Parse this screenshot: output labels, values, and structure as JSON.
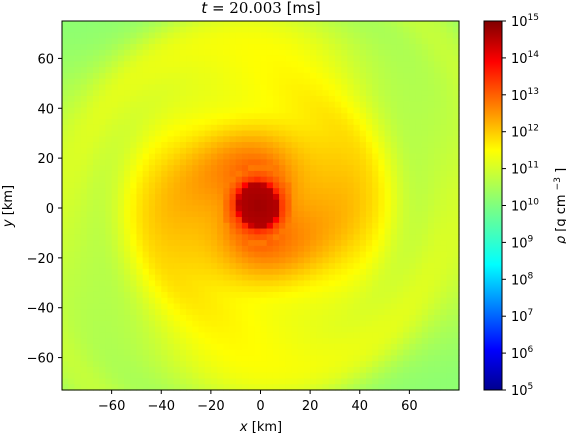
{
  "chart_data": {
    "type": "heatmap",
    "title": {
      "var": "t",
      "eq": "= ",
      "value": "20.003",
      "unit": "[ms]"
    },
    "xlabel": {
      "var": "x",
      "unit": "[km]"
    },
    "ylabel": {
      "var": "y",
      "unit": "[km]"
    },
    "xlim": [
      -80,
      80
    ],
    "ylim": [
      -73,
      75
    ],
    "xticks": [
      -60,
      -40,
      -20,
      0,
      20,
      40,
      60
    ],
    "yticks": [
      -60,
      -40,
      -20,
      0,
      20,
      40,
      60
    ],
    "xtick_labels": [
      "−60",
      "−40",
      "−20",
      "0",
      "20",
      "40",
      "60"
    ],
    "ytick_labels": [
      "−60",
      "−40",
      "−20",
      "0",
      "20",
      "40",
      "60"
    ],
    "colormap": "jet",
    "color_scale": "log",
    "clim": [
      5,
      15
    ],
    "colorbar_ticks": [
      5,
      6,
      7,
      8,
      9,
      10,
      11,
      12,
      13,
      14,
      15
    ],
    "colorbar_base": "10",
    "colorbar_label": {
      "var": "ρ",
      "unit": "[g cm",
      "exp": "−3",
      "close": "]"
    },
    "field": {
      "description_free": true,
      "center": [
        -1,
        1
      ],
      "log_rho_core": 14.7,
      "core_radius_km": 10,
      "log_rho_background": 10.3,
      "profile": [
        [
          0,
          14.7
        ],
        [
          8,
          14.5
        ],
        [
          10,
          13.2
        ],
        [
          14,
          12.6
        ],
        [
          20,
          12.3
        ],
        [
          30,
          11.9
        ],
        [
          40,
          11.5
        ],
        [
          55,
          11.1
        ],
        [
          70,
          10.8
        ],
        [
          100,
          10.4
        ]
      ],
      "spiral_amplitude": 0.25,
      "grid_cells": 64
    }
  }
}
